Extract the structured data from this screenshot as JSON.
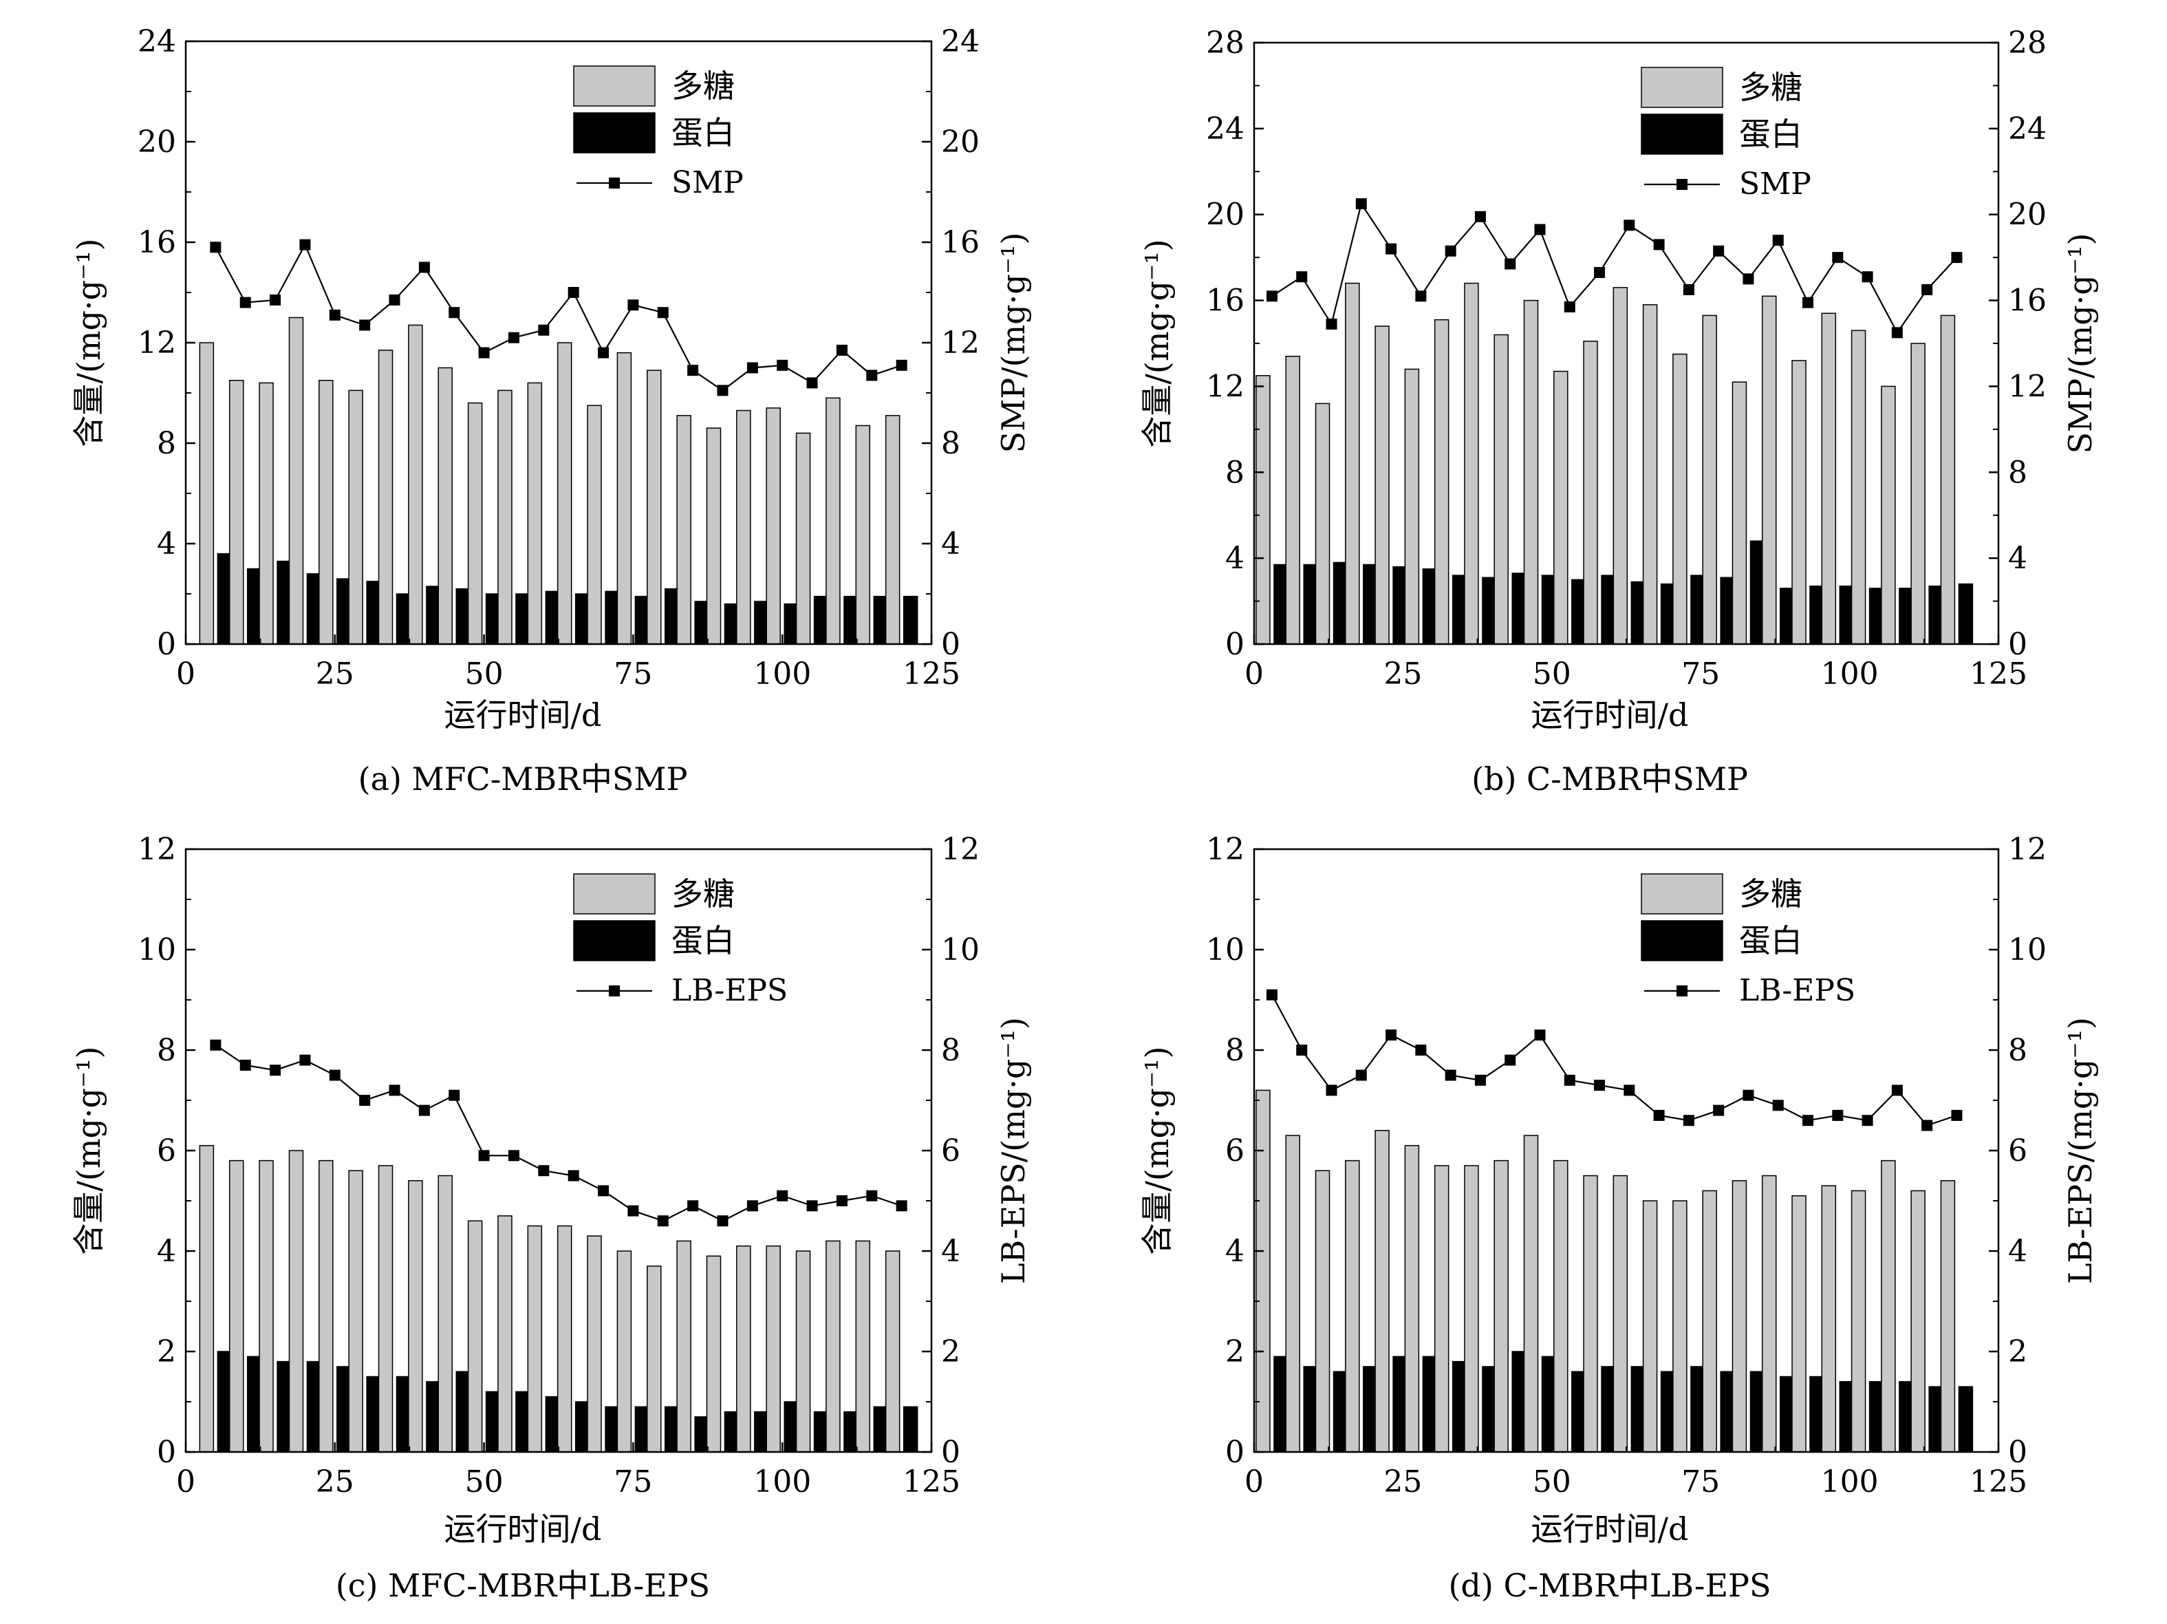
{
  "legend_labels": {
    "polysaccharide": "多糖",
    "protein": "蛋白"
  },
  "colors": {
    "polysaccharide": "#c8c8c8",
    "protein": "#000000",
    "line": "#000000"
  },
  "chart_data": [
    {
      "id": "a",
      "type": "bar+line",
      "caption": "(a) MFC-MBR中SMP",
      "xlabel": "运行时间/d",
      "ylabel_left": "含量/(mg·g⁻¹)",
      "ylabel_right": "SMP/(mg·g⁻¹)",
      "xlim": [
        0,
        125
      ],
      "xticks": [
        0,
        25,
        50,
        75,
        100,
        125
      ],
      "ylim": [
        0,
        24
      ],
      "yticks": [
        0,
        4,
        8,
        12,
        16,
        20,
        24
      ],
      "series_line_name": "SMP",
      "x": [
        5,
        10,
        15,
        20,
        25,
        30,
        35,
        40,
        45,
        50,
        55,
        60,
        65,
        70,
        75,
        80,
        85,
        90,
        95,
        100,
        105,
        110,
        115,
        120
      ],
      "polysaccharide": [
        12.0,
        10.5,
        10.4,
        13.0,
        10.5,
        10.1,
        11.7,
        12.7,
        11.0,
        9.6,
        10.1,
        10.4,
        12.0,
        9.5,
        11.6,
        10.9,
        9.1,
        8.6,
        9.3,
        9.4,
        8.4,
        9.8,
        8.7,
        9.1
      ],
      "protein": [
        3.6,
        3.0,
        3.3,
        2.8,
        2.6,
        2.5,
        2.0,
        2.3,
        2.2,
        2.0,
        2.0,
        2.1,
        2.0,
        2.1,
        1.9,
        2.2,
        1.7,
        1.6,
        1.7,
        1.6,
        1.9,
        1.9,
        1.9,
        1.9
      ],
      "line": [
        15.8,
        13.6,
        13.7,
        15.9,
        13.1,
        12.7,
        13.7,
        15.0,
        13.2,
        11.6,
        12.2,
        12.5,
        14.0,
        11.6,
        13.5,
        13.2,
        10.9,
        10.1,
        11.0,
        11.1,
        10.4,
        11.7,
        10.7,
        11.1
      ]
    },
    {
      "id": "b",
      "type": "bar+line",
      "caption": "(b) C-MBR中SMP",
      "xlabel": "运行时间/d",
      "ylabel_left": "含量/(mg·g⁻¹)",
      "ylabel_right": "SMP/(mg·g⁻¹)",
      "xlim": [
        0,
        125
      ],
      "xticks": [
        0,
        25,
        50,
        75,
        100,
        125
      ],
      "ylim": [
        0,
        28
      ],
      "yticks": [
        0,
        4,
        8,
        12,
        16,
        20,
        24,
        28
      ],
      "series_line_name": "SMP",
      "x": [
        3,
        8,
        13,
        18,
        23,
        28,
        33,
        38,
        43,
        48,
        53,
        58,
        63,
        68,
        73,
        78,
        83,
        88,
        93,
        98,
        103,
        108,
        113,
        118
      ],
      "polysaccharide": [
        12.5,
        13.4,
        11.2,
        16.8,
        14.8,
        12.8,
        15.1,
        16.8,
        14.4,
        16.0,
        12.7,
        14.1,
        16.6,
        15.8,
        13.5,
        15.3,
        12.2,
        16.2,
        13.2,
        15.4,
        14.6,
        12.0,
        14.0,
        15.3
      ],
      "protein": [
        3.7,
        3.7,
        3.8,
        3.7,
        3.6,
        3.5,
        3.2,
        3.1,
        3.3,
        3.2,
        3.0,
        3.2,
        2.9,
        2.8,
        3.2,
        3.1,
        4.8,
        2.6,
        2.7,
        2.7,
        2.6,
        2.6,
        2.7,
        2.8
      ],
      "line": [
        16.2,
        17.1,
        14.9,
        20.5,
        18.4,
        16.2,
        18.3,
        19.9,
        17.7,
        19.3,
        15.7,
        17.3,
        19.5,
        18.6,
        16.5,
        18.3,
        17.0,
        18.8,
        15.9,
        18.0,
        17.1,
        14.5,
        16.5,
        18.0
      ]
    },
    {
      "id": "c",
      "type": "bar+line",
      "caption": "(c) MFC-MBR中LB-EPS",
      "xlabel": "运行时间/d",
      "ylabel_left": "含量/(mg·g⁻¹)",
      "ylabel_right": "LB-EPS/(mg·g⁻¹)",
      "xlim": [
        0,
        125
      ],
      "xticks": [
        0,
        25,
        50,
        75,
        100,
        125
      ],
      "ylim": [
        0,
        12
      ],
      "yticks": [
        0,
        2,
        4,
        6,
        8,
        10,
        12
      ],
      "series_line_name": "LB-EPS",
      "x": [
        5,
        10,
        15,
        20,
        25,
        30,
        35,
        40,
        45,
        50,
        55,
        60,
        65,
        70,
        75,
        80,
        85,
        90,
        95,
        100,
        105,
        110,
        115,
        120
      ],
      "polysaccharide": [
        6.1,
        5.8,
        5.8,
        6.0,
        5.8,
        5.6,
        5.7,
        5.4,
        5.5,
        4.6,
        4.7,
        4.5,
        4.5,
        4.3,
        4.0,
        3.7,
        4.2,
        3.9,
        4.1,
        4.1,
        4.0,
        4.2,
        4.2,
        4.0
      ],
      "protein": [
        2.0,
        1.9,
        1.8,
        1.8,
        1.7,
        1.5,
        1.5,
        1.4,
        1.6,
        1.2,
        1.2,
        1.1,
        1.0,
        0.9,
        0.9,
        0.9,
        0.7,
        0.8,
        0.8,
        1.0,
        0.8,
        0.8,
        0.9,
        0.9
      ],
      "line": [
        8.1,
        7.7,
        7.6,
        7.8,
        7.5,
        7.0,
        7.2,
        6.8,
        7.1,
        5.9,
        5.9,
        5.6,
        5.5,
        5.2,
        4.8,
        4.6,
        4.9,
        4.6,
        4.9,
        5.1,
        4.9,
        5.0,
        5.1,
        4.9
      ]
    },
    {
      "id": "d",
      "type": "bar+line",
      "caption": "(d) C-MBR中LB-EPS",
      "xlabel": "运行时间/d",
      "ylabel_left": "含量/(mg·g⁻¹)",
      "ylabel_right": "LB-EPS/(mg·g⁻¹)",
      "xlim": [
        0,
        125
      ],
      "xticks": [
        0,
        25,
        50,
        75,
        100,
        125
      ],
      "ylim": [
        0,
        12
      ],
      "yticks": [
        0,
        2,
        4,
        6,
        8,
        10,
        12
      ],
      "series_line_name": "LB-EPS",
      "x": [
        3,
        8,
        13,
        18,
        23,
        28,
        33,
        38,
        43,
        48,
        53,
        58,
        63,
        68,
        73,
        78,
        83,
        88,
        93,
        98,
        103,
        108,
        113,
        118
      ],
      "polysaccharide": [
        7.2,
        6.3,
        5.6,
        5.8,
        6.4,
        6.1,
        5.7,
        5.7,
        5.8,
        6.3,
        5.8,
        5.5,
        5.5,
        5.0,
        5.0,
        5.2,
        5.4,
        5.5,
        5.1,
        5.3,
        5.2,
        5.8,
        5.2,
        5.4
      ],
      "protein": [
        1.9,
        1.7,
        1.6,
        1.7,
        1.9,
        1.9,
        1.8,
        1.7,
        2.0,
        1.9,
        1.6,
        1.7,
        1.7,
        1.6,
        1.7,
        1.6,
        1.6,
        1.5,
        1.5,
        1.4,
        1.4,
        1.4,
        1.3,
        1.3
      ],
      "line": [
        9.1,
        8.0,
        7.2,
        7.5,
        8.3,
        8.0,
        7.5,
        7.4,
        7.8,
        8.3,
        7.4,
        7.3,
        7.2,
        6.7,
        6.6,
        6.8,
        7.1,
        6.9,
        6.6,
        6.7,
        6.6,
        7.2,
        6.5,
        6.7
      ]
    }
  ]
}
